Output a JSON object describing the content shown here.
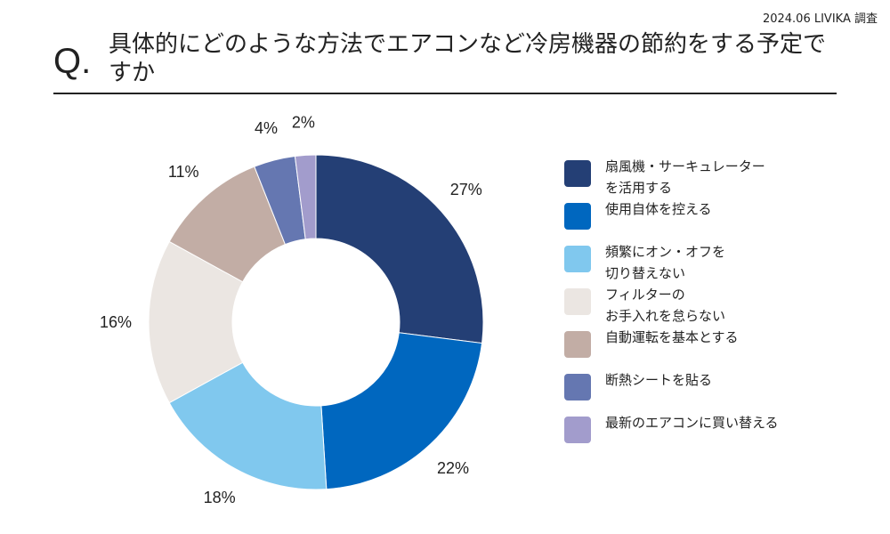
{
  "source_note": "2024.06 LIVIKA 調査",
  "question_mark": "Q.",
  "title": "具体的にどのような方法でエアコンなど冷房機器の節約をする予定ですか",
  "chart_data": {
    "type": "pie",
    "style": "donut",
    "title": "具体的にどのような方法でエアコンなど冷房機器の節約をする予定ですか",
    "value_unit": "%",
    "categories": [
      "扇風機・サーキュレーターを活用する",
      "使用自体を控える",
      "頻繁にオン・オフを切り替えない",
      "フィルターのお手入れを怠らない",
      "自動運転を基本とする",
      "断熱シートを貼る",
      "最新のエアコンに買い替える"
    ],
    "values": [
      27,
      22,
      18,
      16,
      11,
      4,
      2
    ],
    "data_labels": [
      "27%",
      "22%",
      "18%",
      "16%",
      "11%",
      "4%",
      "2%"
    ],
    "colors": [
      "#243f75",
      "#0067bf",
      "#80c8ee",
      "#ebe6e2",
      "#c2ada5",
      "#6577b1",
      "#a29ccc"
    ],
    "legend_position": "right"
  },
  "legend": [
    {
      "line1": "扇風機・サーキュレーター",
      "line2": "を活用する",
      "color": "#243f75"
    },
    {
      "line1": "使用自体を控える",
      "line2": "",
      "color": "#0067bf"
    },
    {
      "line1": "頻繁にオン・オフを",
      "line2": "切り替えない",
      "color": "#80c8ee"
    },
    {
      "line1": "フィルターの",
      "line2": "お手入れを怠らない",
      "color": "#ebe6e2"
    },
    {
      "line1": "自動運転を基本とする",
      "line2": "",
      "color": "#c2ada5"
    },
    {
      "line1": "断熱シートを貼る",
      "line2": "",
      "color": "#6577b1"
    },
    {
      "line1": "最新のエアコンに買い替える",
      "line2": "",
      "color": "#a29ccc"
    }
  ]
}
